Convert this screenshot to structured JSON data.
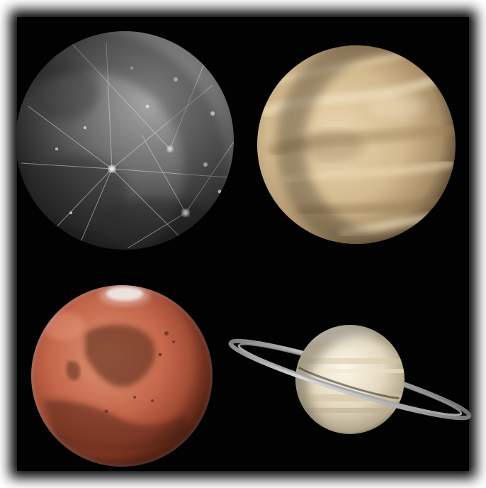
{
  "scene": {
    "background_color": "#020202",
    "frame_glow_color": "#ffffff",
    "objects": [
      {
        "name": "mercury-planet",
        "surface_colors": [
          "#9a9a9a",
          "#5e5e5e",
          "#2a2a2a"
        ],
        "feature": "bright-rayed-craters"
      },
      {
        "name": "venus-planet",
        "surface_colors": [
          "#efe0bc",
          "#c7ad84",
          "#7a6447"
        ],
        "feature": "swirling-cloud-bands"
      },
      {
        "name": "mars-planet",
        "surface_colors": [
          "#d9896a",
          "#b4553a",
          "#5a2416"
        ],
        "feature": "north-polar-cap-and-dark-albedo"
      },
      {
        "name": "saturn-planet",
        "surface_colors": [
          "#f6f1e2",
          "#d8cdb4",
          "#8f8670"
        ],
        "feature": "edge-on-tilted-rings"
      }
    ]
  }
}
